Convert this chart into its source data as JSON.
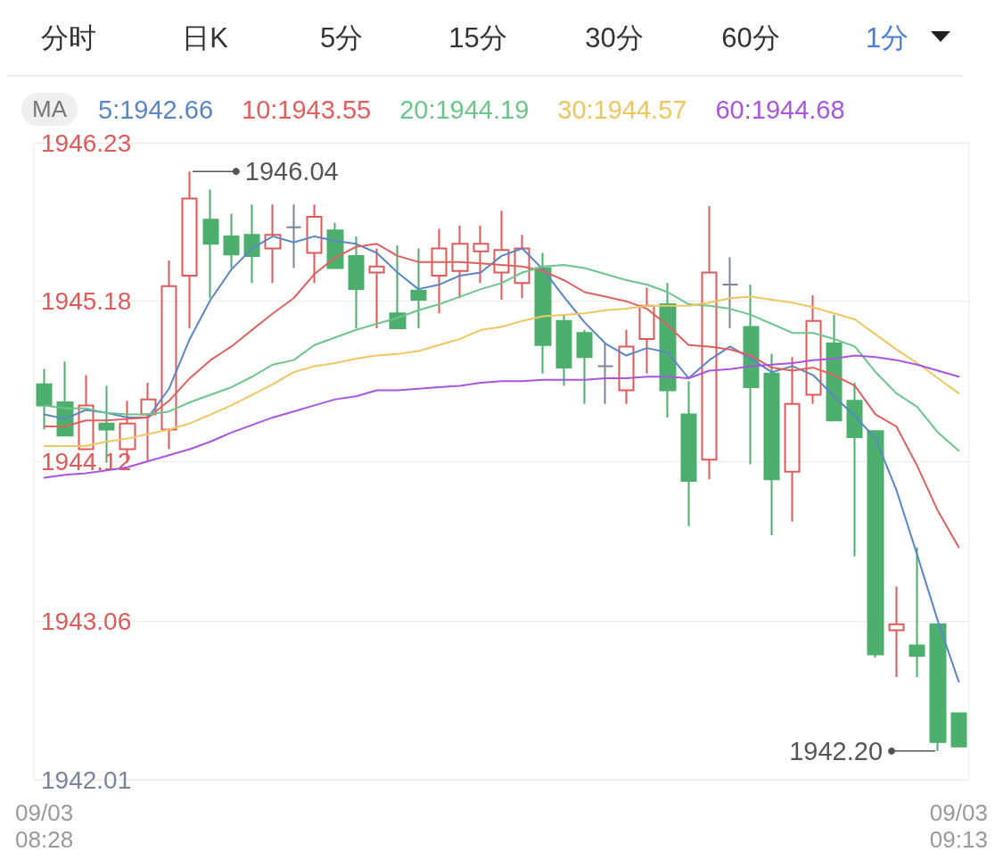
{
  "chart_data": {
    "type": "candlestick",
    "annotations": [
      "分时",
      "日K",
      "5分",
      "15分",
      "30分",
      "60分",
      "1分",
      "1946.04",
      "1942.20"
    ],
    "categories": [
      "09/03 08:28",
      null,
      null,
      null,
      null,
      null,
      null,
      null,
      null,
      null,
      null,
      null,
      null,
      null,
      null,
      null,
      null,
      null,
      null,
      null,
      null,
      null,
      null,
      null,
      null,
      null,
      null,
      null,
      null,
      null,
      null,
      null,
      null,
      null,
      null,
      null,
      null,
      null,
      null,
      null,
      null,
      null,
      null,
      null,
      "09/03 09:13"
    ],
    "ohlc": [
      [
        1944.63,
        1944.73,
        1944.33,
        1944.49
      ],
      [
        1944.51,
        1944.78,
        1944.29,
        1944.29
      ],
      [
        1944.2,
        1944.69,
        1944.2,
        1944.49
      ],
      [
        1944.37,
        1944.62,
        1944.11,
        1944.33
      ],
      [
        1944.2,
        1944.52,
        1944.11,
        1944.37
      ],
      [
        1944.43,
        1944.64,
        1944.12,
        1944.53
      ],
      [
        1944.33,
        1945.45,
        1944.2,
        1945.28
      ],
      [
        1945.35,
        1946.04,
        1945.0,
        1945.86
      ],
      [
        1945.72,
        1945.92,
        1945.2,
        1945.56
      ],
      [
        1945.61,
        1945.76,
        1945.4,
        1945.49
      ],
      [
        1945.62,
        1945.82,
        1945.3,
        1945.48
      ],
      [
        1945.53,
        1945.82,
        1945.3,
        1945.62
      ],
      [
        1945.67,
        1945.82,
        1945.4,
        1945.67
      ],
      [
        1945.5,
        1945.82,
        1945.3,
        1945.74
      ],
      [
        1945.65,
        1945.7,
        1945.4,
        1945.4
      ],
      [
        1945.48,
        1945.61,
        1945.0,
        1945.26
      ],
      [
        1945.37,
        1945.53,
        1945.0,
        1945.41
      ],
      [
        1945.1,
        1945.55,
        1945.0,
        1945.0
      ],
      [
        1945.25,
        1945.53,
        1945.0,
        1945.19
      ],
      [
        1945.35,
        1945.66,
        1945.1,
        1945.53
      ],
      [
        1945.38,
        1945.68,
        1945.2,
        1945.56
      ],
      [
        1945.51,
        1945.68,
        1945.3,
        1945.56
      ],
      [
        1945.37,
        1945.78,
        1945.19,
        1945.52
      ],
      [
        1945.3,
        1945.62,
        1945.2,
        1945.53
      ],
      [
        1945.4,
        1945.5,
        1944.7,
        1944.89
      ],
      [
        1945.05,
        1945.09,
        1944.62,
        1944.74
      ],
      [
        1944.97,
        1944.99,
        1944.5,
        1944.81
      ],
      [
        1944.75,
        1944.9,
        1944.5,
        1944.75
      ],
      [
        1944.59,
        1944.99,
        1944.5,
        1944.88
      ],
      [
        1944.93,
        1945.27,
        1944.7,
        1945.15
      ],
      [
        1945.16,
        1945.3,
        1944.41,
        1944.59
      ],
      [
        1944.43,
        1944.65,
        1943.69,
        1943.99
      ],
      [
        1944.13,
        1945.81,
        1944.0,
        1945.37
      ],
      [
        1945.29,
        1945.47,
        1945.0,
        1945.29
      ],
      [
        1945.01,
        1945.29,
        1944.1,
        1944.61
      ],
      [
        1944.7,
        1944.83,
        1943.63,
        1944.0
      ],
      [
        1944.05,
        1944.81,
        1943.72,
        1944.5
      ],
      [
        1944.56,
        1945.22,
        1944.5,
        1945.05
      ],
      [
        1944.9,
        1945.09,
        1944.39,
        1944.39
      ],
      [
        1944.52,
        1944.64,
        1943.49,
        1944.28
      ],
      [
        1944.32,
        1944.32,
        1942.82,
        1942.84
      ],
      [
        1943.0,
        1943.29,
        1942.69,
        1943.04
      ],
      [
        1942.9,
        1943.55,
        1942.69,
        1942.83
      ],
      [
        1943.04,
        1943.04,
        1942.2,
        1942.26
      ],
      [
        1942.45,
        1942.45,
        1942.23,
        1942.23
      ]
    ],
    "colors": [
      "#4caf6e",
      "#4caf6e",
      "#e05a5a",
      "#4caf6e",
      "#e05a5a",
      "#e05a5a",
      "#e05a5a",
      "#e05a5a",
      "#4caf6e",
      "#4caf6e",
      "#4caf6e",
      "#e05a5a",
      "#7b849e",
      "#e05a5a",
      "#4caf6e",
      "#4caf6e",
      "#e05a5a",
      "#4caf6e",
      "#4caf6e",
      "#e05a5a",
      "#e05a5a",
      "#e05a5a",
      "#e05a5a",
      "#e05a5a",
      "#4caf6e",
      "#4caf6e",
      "#4caf6e",
      "#7b849e",
      "#e05a5a",
      "#e05a5a",
      "#4caf6e",
      "#4caf6e",
      "#e05a5a",
      "#7b849e",
      "#4caf6e",
      "#4caf6e",
      "#e05a5a",
      "#e05a5a",
      "#4caf6e",
      "#4caf6e",
      "#4caf6e",
      "#e05a5a",
      "#4caf6e",
      "#4caf6e",
      "#4caf6e"
    ],
    "series": [
      {
        "name": "5:1942.66",
        "type": "line",
        "color": "#5b86c5",
        "values": [
          1944.43,
          1944.4,
          1944.46,
          1944.44,
          1944.41,
          1944.41,
          1944.6,
          1944.93,
          1945.19,
          1945.39,
          1945.53,
          1945.61,
          1945.57,
          1945.61,
          1945.58,
          1945.56,
          1945.5,
          1945.37,
          1945.26,
          1945.29,
          1945.35,
          1945.37,
          1945.48,
          1945.53,
          1945.39,
          1945.21,
          1945.04,
          1944.9,
          1944.82,
          1944.87,
          1944.84,
          1944.67,
          1944.79,
          1944.88,
          1944.8,
          1944.71,
          1944.75,
          1944.69,
          1944.55,
          1944.42,
          1944.27,
          1943.93,
          1943.5,
          1943.06,
          1942.66
        ]
      },
      {
        "name": "10:1943.55",
        "type": "line",
        "color": "#e06060",
        "values": [
          1944.35,
          1944.35,
          1944.39,
          1944.39,
          1944.4,
          1944.41,
          1944.52,
          1944.67,
          1944.79,
          1944.88,
          1944.99,
          1945.1,
          1945.2,
          1945.36,
          1945.47,
          1945.54,
          1945.56,
          1945.48,
          1945.44,
          1945.44,
          1945.44,
          1945.43,
          1945.42,
          1945.41,
          1945.38,
          1945.32,
          1945.24,
          1945.21,
          1945.18,
          1945.13,
          1945.02,
          1944.89,
          1944.88,
          1944.86,
          1944.82,
          1944.74,
          1944.72,
          1944.74,
          1944.69,
          1944.62,
          1944.43,
          1944.35,
          1944.09,
          1943.79,
          1943.55
        ]
      },
      {
        "name": "20:1944.19",
        "type": "line",
        "color": "#6cc58a",
        "values": [
          1944.49,
          1944.47,
          1944.47,
          1944.44,
          1944.43,
          1944.43,
          1944.45,
          1944.51,
          1944.56,
          1944.61,
          1944.68,
          1944.76,
          1944.79,
          1944.89,
          1944.94,
          1944.99,
          1945.03,
          1945.07,
          1945.12,
          1945.16,
          1945.21,
          1945.26,
          1945.3,
          1945.37,
          1945.41,
          1945.42,
          1945.4,
          1945.36,
          1945.32,
          1945.29,
          1945.24,
          1945.16,
          1945.15,
          1945.13,
          1945.09,
          1945.03,
          1944.97,
          1944.97,
          1944.93,
          1944.88,
          1944.71,
          1944.57,
          1944.48,
          1944.31,
          1944.19
        ]
      },
      {
        "name": "30:1944.57",
        "type": "line",
        "color": "#f0c660",
        "values": [
          1944.22,
          1944.22,
          1944.22,
          1944.25,
          1944.27,
          1944.3,
          1944.33,
          1944.37,
          1944.43,
          1944.49,
          1944.56,
          1944.63,
          1944.71,
          1944.75,
          1944.77,
          1944.8,
          1944.82,
          1944.83,
          1944.85,
          1944.89,
          1944.93,
          1944.99,
          1945.01,
          1945.05,
          1945.08,
          1945.09,
          1945.1,
          1945.12,
          1945.13,
          1945.15,
          1945.15,
          1945.15,
          1945.17,
          1945.2,
          1945.21,
          1945.19,
          1945.17,
          1945.14,
          1945.1,
          1945.06,
          1944.96,
          1944.86,
          1944.77,
          1944.67,
          1944.57
        ]
      },
      {
        "name": "60:1944.68",
        "type": "line",
        "color": "#a855e0",
        "values": [
          1944.01,
          1944.03,
          1944.04,
          1944.06,
          1944.08,
          1944.12,
          1944.16,
          1944.2,
          1944.25,
          1944.31,
          1944.36,
          1944.41,
          1944.45,
          1944.49,
          1944.53,
          1944.55,
          1944.59,
          1944.59,
          1944.6,
          1944.61,
          1944.62,
          1944.64,
          1944.65,
          1944.65,
          1944.66,
          1944.66,
          1944.66,
          1944.67,
          1944.67,
          1944.68,
          1944.68,
          1944.67,
          1944.72,
          1944.73,
          1944.75,
          1944.76,
          1944.77,
          1944.79,
          1944.8,
          1944.82,
          1944.81,
          1944.79,
          1944.76,
          1944.72,
          1944.68
        ]
      }
    ],
    "legend_title": "MA",
    "legend": "top left",
    "ylim": [
      1942.01,
      1946.23
    ],
    "yticks": [
      1946.23,
      1945.18,
      1944.12,
      1943.06,
      1942.01
    ],
    "grid": "y",
    "marker": "none",
    "line_style": "solid"
  }
}
